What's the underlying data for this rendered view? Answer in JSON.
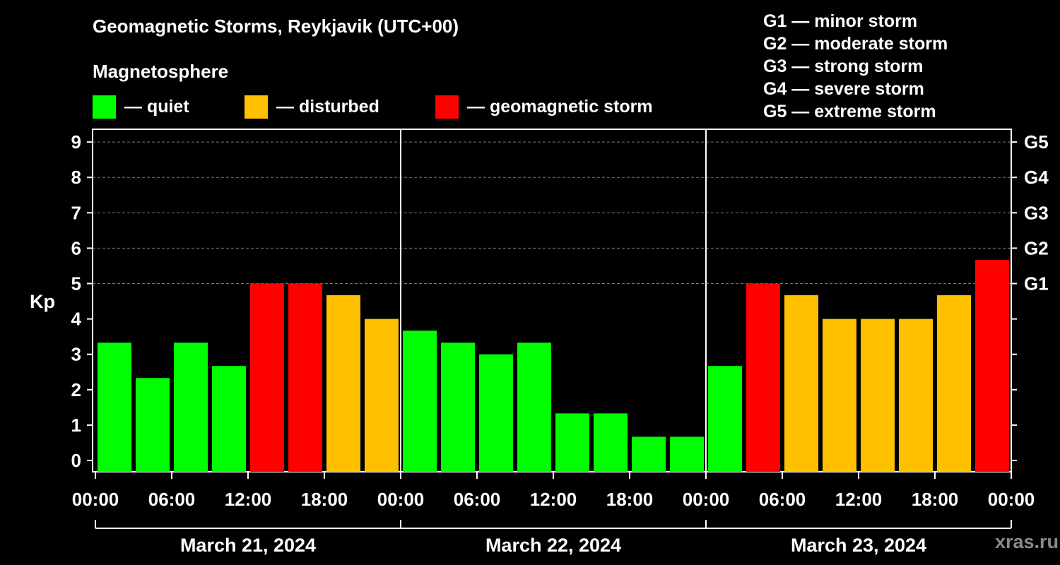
{
  "title": "Geomagnetic Storms, Reykjavik (UTC+00)",
  "subtitle": "Magnetosphere",
  "legend": [
    {
      "label": "— quiet",
      "color": "#00ff00"
    },
    {
      "label": "— disturbed",
      "color": "#ffc000"
    },
    {
      "label": "— geomagnetic storm",
      "color": "#ff0000"
    }
  ],
  "storm_levels": [
    "G1 — minor storm",
    "G2 — moderate storm",
    "G3 — strong storm",
    "G4 — severe storm",
    "G5 — extreme storm"
  ],
  "watermark": "xras.ru",
  "chart_data": {
    "type": "bar",
    "ylabel": "Kp",
    "xlabel": "",
    "ylim": [
      0,
      9
    ],
    "yticks": [
      "0",
      "1",
      "2",
      "3",
      "4",
      "5",
      "6",
      "7",
      "8",
      "9"
    ],
    "right_axis_labels": [
      {
        "kp": 5,
        "label": "G1"
      },
      {
        "kp": 6,
        "label": "G2"
      },
      {
        "kp": 7,
        "label": "G3"
      },
      {
        "kp": 8,
        "label": "G4"
      },
      {
        "kp": 9,
        "label": "G5"
      }
    ],
    "xtick_labels": [
      "00:00",
      "06:00",
      "12:00",
      "18:00",
      "00:00",
      "06:00",
      "12:00",
      "18:00",
      "00:00",
      "06:00",
      "12:00",
      "18:00",
      "00:00"
    ],
    "days": [
      "March 21, 2024",
      "March 22, 2024",
      "March 23, 2024"
    ],
    "interval_hours": 3,
    "values": [
      3.33,
      2.33,
      3.33,
      2.67,
      5.0,
      5.0,
      4.67,
      4.0,
      3.67,
      3.33,
      3.0,
      3.33,
      1.33,
      1.33,
      0.67,
      0.67,
      2.67,
      5.0,
      4.67,
      4.0,
      4.0,
      4.0,
      4.67,
      5.67
    ],
    "colors": {
      "quiet": "#00ff00",
      "disturbed": "#ffc000",
      "storm": "#ff0000"
    },
    "grid": true
  }
}
